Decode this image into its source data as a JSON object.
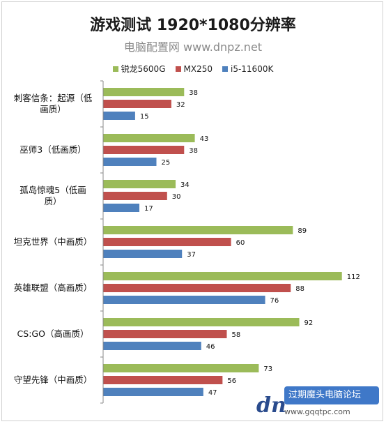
{
  "chart_data": {
    "type": "bar",
    "orientation": "horizontal",
    "title": "游戏测试 1920*1080分辨率",
    "subtitle": "电脑配置网 www.dnpz.net",
    "categories": [
      "刺客信条：起源（低画质）",
      "巫师3（低画质）",
      "孤岛惊魂5（低画质）",
      "坦克世界（中画质）",
      "英雄联盟（高画质）",
      "CS:GO（高画质）",
      "守望先锋（中画质）"
    ],
    "category_lines": [
      [
        "刺客信条：起源（低",
        "画质）"
      ],
      [
        "巫师3（低画质）"
      ],
      [
        "孤岛惊魂5（低画",
        "质）"
      ],
      [
        "坦克世界（中画质）"
      ],
      [
        "英雄联盟（高画质）"
      ],
      [
        "CS:GO（高画质）"
      ],
      [
        "守望先锋（中画质）"
      ]
    ],
    "series": [
      {
        "name": "锐龙5600G",
        "color": "#9bbb59",
        "values": [
          38,
          43,
          34,
          89,
          112,
          92,
          73
        ]
      },
      {
        "name": "MX250",
        "color": "#c0504d",
        "values": [
          32,
          38,
          30,
          60,
          88,
          58,
          56
        ]
      },
      {
        "name": "i5-11600K",
        "color": "#4f81bd",
        "values": [
          15,
          25,
          17,
          37,
          76,
          46,
          47
        ]
      }
    ],
    "xlim": [
      0,
      115
    ],
    "grid": false,
    "legend_position": "top"
  },
  "watermark": {
    "logo_text": "dn",
    "badge_text": "过期魔头电脑论坛",
    "url_text": "www.gqqtpc.com"
  }
}
